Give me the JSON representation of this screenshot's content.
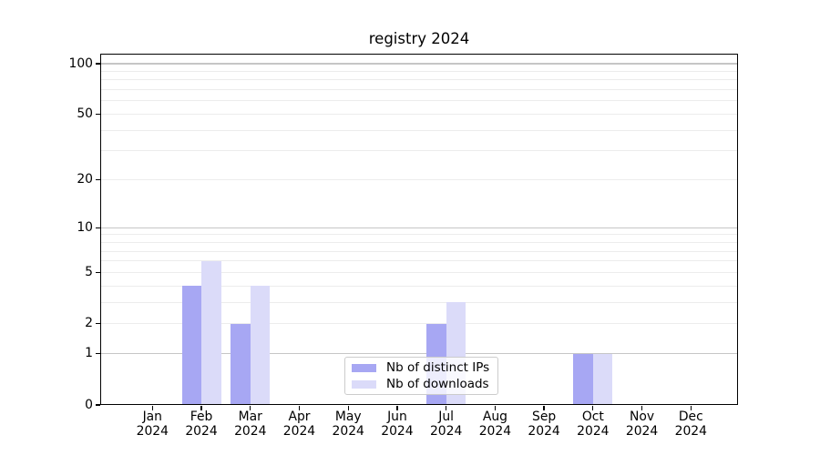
{
  "title": "registry 2024",
  "colors": {
    "ips": "#a7a7f3",
    "downloads": "#dbdbf9",
    "grid_minor": "#ececec",
    "grid_major": "#c6c6c6",
    "axis": "#000000",
    "legend_border": "#cccccc"
  },
  "legend": {
    "items": [
      {
        "label": "Nb of distinct IPs",
        "series": "ips"
      },
      {
        "label": "Nb of downloads",
        "series": "downloads"
      }
    ]
  },
  "chart_data": {
    "type": "bar",
    "title": "registry 2024",
    "categories": [
      "Jan 2024",
      "Feb 2024",
      "Mar 2024",
      "Apr 2024",
      "May 2024",
      "Jun 2024",
      "Jul 2024",
      "Aug 2024",
      "Sep 2024",
      "Oct 2024",
      "Nov 2024",
      "Dec 2024"
    ],
    "series": [
      {
        "name": "Nb of distinct IPs",
        "color": "#a7a7f3",
        "values": [
          0,
          4,
          2,
          0,
          0,
          0,
          2,
          0,
          0,
          1,
          0,
          0
        ]
      },
      {
        "name": "Nb of downloads",
        "color": "#dbdbf9",
        "values": [
          0,
          6,
          4,
          0,
          0,
          0,
          3,
          0,
          0,
          1,
          0,
          0
        ]
      }
    ],
    "xlabel": "",
    "ylabel": "",
    "yscale": "log1p",
    "ylim": [
      0,
      115
    ],
    "y_ticks": [
      0,
      1,
      2,
      5,
      10,
      20,
      50,
      100
    ],
    "y_minor_gridlines": [
      2,
      3,
      4,
      5,
      6,
      7,
      8,
      9,
      20,
      30,
      40,
      50,
      60,
      70,
      80,
      90
    ],
    "y_major_gridlines": [
      1,
      10,
      100
    ],
    "grid": "horizontal",
    "legend_position": "lower center"
  }
}
